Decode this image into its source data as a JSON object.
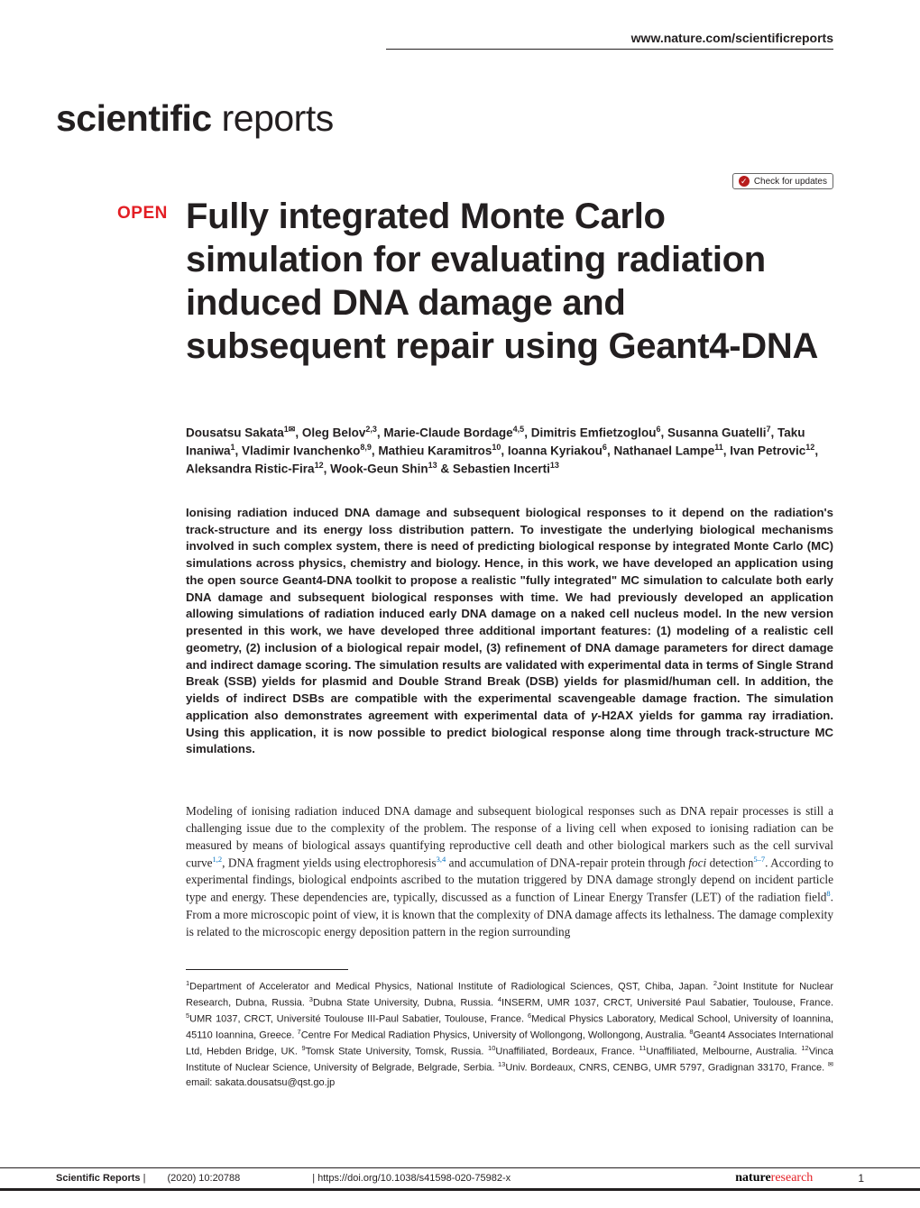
{
  "header": {
    "url": "www.nature.com/scientificreports"
  },
  "journal_logo": {
    "bold_part": "scientific",
    "light_part": " reports"
  },
  "check_updates": {
    "label": "Check for updates"
  },
  "badge": {
    "text": "OPEN"
  },
  "title": "Fully integrated Monte Carlo simulation for evaluating radiation induced DNA damage and subsequent repair using Geant4-DNA",
  "authors_html": "Dousatsu Sakata<sup>1✉</sup>, Oleg Belov<sup>2,3</sup>, Marie-Claude Bordage<sup>4,5</sup>, Dimitris Emfietzoglou<sup>6</sup>, Susanna Guatelli<sup>7</sup>, Taku Inaniwa<sup>1</sup>, Vladimir Ivanchenko<sup>8,9</sup>, Mathieu Karamitros<sup>10</sup>, Ioanna Kyriakou<sup>6</sup>, Nathanael Lampe<sup>11</sup>, Ivan Petrovic<sup>12</sup>, Aleksandra Ristic-Fira<sup>12</sup>, Wook-Geun Shin<sup>13</sup> & Sebastien Incerti<sup>13</sup>",
  "abstract_html": "Ionising radiation induced DNA damage and subsequent biological responses to it depend on the radiation's track-structure and its energy loss distribution pattern. To investigate the underlying biological mechanisms involved in such complex system, there is need of predicting biological response by integrated Monte Carlo (MC) simulations across physics, chemistry and biology. Hence, in this work, we have developed an application using the open source Geant4-DNA toolkit to propose a realistic \"fully integrated\" MC simulation to calculate both early DNA damage and subsequent biological responses with time. We had previously developed an application allowing simulations of radiation induced early DNA damage on a naked cell nucleus model. In the new version presented in this work, we have developed three additional important features: (1) modeling of a realistic cell geometry, (2) inclusion of a biological repair model, (3) refinement of DNA damage parameters for direct damage and indirect damage scoring. The simulation results are validated with experimental data in terms of Single Strand Break (SSB) yields for plasmid and Double Strand Break (DSB) yields for plasmid/human cell. In addition, the yields of indirect DSBs are compatible with the experimental scavengeable damage fraction. The simulation application also demonstrates agreement with experimental data of <em>γ</em>-H2AX yields for gamma ray irradiation. Using this application, it is now possible to predict biological response along time through track-structure MC simulations.",
  "body_html": "Modeling of ionising radiation induced DNA damage and subsequent biological responses such as DNA repair processes is still a challenging issue due to the complexity of the problem. The response of a living cell when exposed to ionising radiation can be measured by means of biological assays quantifying reproductive cell death and other biological markers such as the cell survival curve<sup>1,2</sup>, DNA fragment yields using electrophoresis<sup>3,4</sup> and accumulation of DNA-repair protein through <em>foci</em> detection<sup>5–7</sup>. According to experimental findings, biological endpoints ascribed to the mutation triggered by DNA damage strongly depend on incident particle type and energy. These dependencies are, typically, discussed as a function of Linear Energy Transfer (LET) of the radiation field<sup>8</sup>. From a more microscopic point of view, it is known that the complexity of DNA damage affects its lethalness. The damage complexity is related to the microscopic energy deposition pattern in the region surrounding",
  "affiliations_html": "<sup>1</sup>Department of Accelerator and Medical Physics, National Institute of Radiological Sciences, QST, Chiba, Japan. <sup>2</sup>Joint Institute for Nuclear Research, Dubna, Russia. <sup>3</sup>Dubna State University, Dubna, Russia. <sup>4</sup>INSERM, UMR 1037, CRCT, Université Paul Sabatier, Toulouse, France. <sup>5</sup>UMR 1037, CRCT, Université Toulouse III-Paul Sabatier, Toulouse, France. <sup>6</sup>Medical Physics Laboratory, Medical School, University of Ioannina, 45110 Ioannina, Greece. <sup>7</sup>Centre For Medical Radiation Physics, University of Wollongong, Wollongong, Australia. <sup>8</sup>Geant4 Associates International Ltd, Hebden Bridge, UK. <sup>9</sup>Tomsk State University, Tomsk, Russia. <sup>10</sup>Unaffiliated, Bordeaux, France. <sup>11</sup>Unaffiliated, Melbourne, Australia. <sup>12</sup>Vinca Institute of Nuclear Science, University of Belgrade, Belgrade, Serbia. <sup>13</sup>Univ. Bordeaux, CNRS, CENBG, UMR 5797, Gradignan 33170, France. <sup>✉</sup>email: sakata.dousatsu@qst.go.jp",
  "footer": {
    "journal": "Scientific Reports",
    "citation": "(2020) 10:20788",
    "doi": "| https://doi.org/10.1038/s41598-020-75982-x",
    "publisher_bold": "nature",
    "publisher_light": "research",
    "page": "1"
  },
  "colors": {
    "accent_red": "#e31e24",
    "link_blue": "#0070c0",
    "text": "#231f20",
    "dark_red": "#b71c1c"
  },
  "typography": {
    "title_fontsize": 40,
    "authors_fontsize": 13.5,
    "abstract_fontsize": 13.2,
    "body_fontsize": 13.3,
    "affiliations_fontsize": 11,
    "footer_fontsize": 11,
    "logo_fontsize": 41
  }
}
